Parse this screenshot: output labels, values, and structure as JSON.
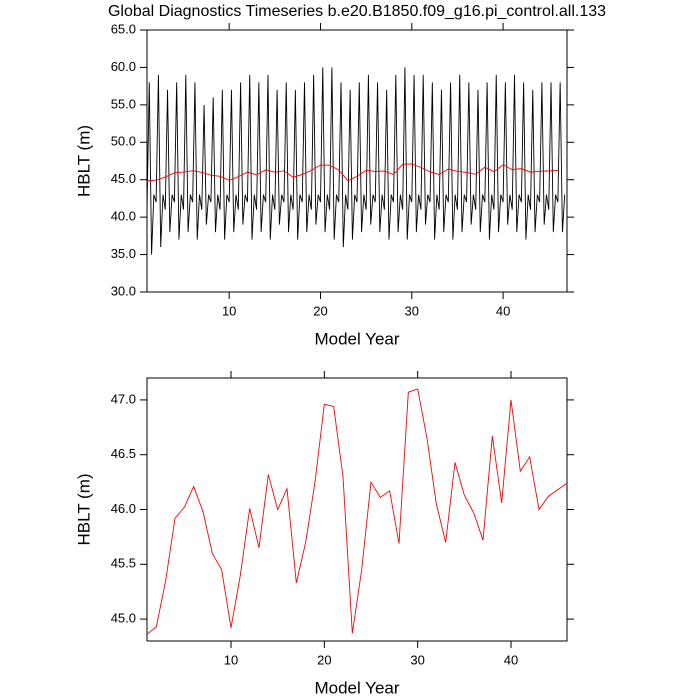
{
  "chart_data": [
    {
      "type": "line",
      "title": "Global Diagnostics Timeseries b.e20.B1850.f09_g16.pi_control.all.133",
      "xlabel": "Model Year",
      "ylabel": "HBLT (m)",
      "xlim": [
        1,
        47
      ],
      "ylim": [
        30,
        65
      ],
      "xticks": [
        10,
        20,
        30,
        40
      ],
      "yticks": [
        {
          "value": 30,
          "label": "30.0"
        },
        {
          "value": 35,
          "label": "35.0"
        },
        {
          "value": 40,
          "label": "40.0"
        },
        {
          "value": 45,
          "label": "45.0"
        },
        {
          "value": 50,
          "label": "50.0"
        },
        {
          "value": 55,
          "label": "55.0"
        },
        {
          "value": 60,
          "label": "60.0"
        },
        {
          "value": 65,
          "label": "65.0"
        }
      ],
      "series": [
        {
          "color": "#000000",
          "x": [
            1,
            1.25,
            1.5,
            1.75,
            2,
            2.25,
            2.5,
            2.75,
            3,
            3.25,
            3.5,
            3.75,
            4,
            4.25,
            4.5,
            4.75,
            5,
            5.25,
            5.5,
            5.75,
            6,
            6.25,
            6.5,
            6.75,
            7,
            7.25,
            7.5,
            7.75,
            8,
            8.25,
            8.5,
            8.75,
            9,
            9.25,
            9.5,
            9.75,
            10,
            10.25,
            10.5,
            10.75,
            11,
            11.25,
            11.5,
            11.75,
            12,
            12.25,
            12.5,
            12.75,
            13,
            13.25,
            13.5,
            13.75,
            14,
            14.25,
            14.5,
            14.75,
            15,
            15.25,
            15.5,
            15.75,
            16,
            16.25,
            16.5,
            16.75,
            17,
            17.25,
            17.5,
            17.75,
            18,
            18.25,
            18.5,
            18.75,
            19,
            19.25,
            19.5,
            19.75,
            20,
            20.25,
            20.5,
            20.75,
            21,
            21.25,
            21.5,
            21.75,
            22,
            22.25,
            22.5,
            22.75,
            23,
            23.25,
            23.5,
            23.75,
            24,
            24.25,
            24.5,
            24.75,
            25,
            25.25,
            25.5,
            25.75,
            26,
            26.25,
            26.5,
            26.75,
            27,
            27.25,
            27.5,
            27.75,
            28,
            28.25,
            28.5,
            28.75,
            29,
            29.25,
            29.5,
            29.75,
            30,
            30.25,
            30.5,
            30.75,
            31,
            31.25,
            31.5,
            31.75,
            32,
            32.25,
            32.5,
            32.75,
            33,
            33.25,
            33.5,
            33.75,
            34,
            34.25,
            34.5,
            34.75,
            35,
            35.25,
            35.5,
            35.75,
            36,
            36.25,
            36.5,
            36.75,
            37,
            37.25,
            37.5,
            37.75,
            38,
            38.25,
            38.5,
            38.75,
            39,
            39.25,
            39.5,
            39.75,
            40,
            40.25,
            40.5,
            40.75,
            41,
            41.25,
            41.5,
            41.75,
            42,
            42.25,
            42.5,
            42.75,
            43,
            43.25,
            43.5,
            43.75,
            44,
            44.25,
            44.5,
            44.75,
            45,
            45.25,
            45.5,
            45.75,
            46,
            46.25,
            46.5,
            46.75
          ],
          "values": [
            41,
            58,
            35,
            43,
            42,
            59,
            36,
            43,
            41,
            57,
            38,
            43,
            42,
            58,
            37,
            43,
            41,
            59,
            38,
            43,
            42,
            58,
            37,
            43,
            41,
            55,
            39,
            43,
            42,
            56,
            38,
            43,
            41,
            57,
            37,
            43,
            42,
            57,
            38,
            43,
            41,
            58,
            39,
            43,
            42,
            59,
            37,
            43,
            41,
            58,
            38,
            43,
            42,
            59,
            37,
            43,
            41,
            57,
            39,
            43,
            42,
            58,
            38,
            43,
            41,
            57,
            37,
            43,
            42,
            58,
            38,
            43,
            41,
            59,
            39,
            43,
            42,
            60,
            38,
            43,
            41,
            60,
            37,
            43,
            42,
            58,
            36,
            43,
            41,
            57,
            37,
            43,
            42,
            58,
            38,
            43,
            41,
            59,
            39,
            43,
            42,
            58,
            38,
            43,
            41,
            57,
            37,
            43,
            42,
            59,
            38,
            43,
            41,
            60,
            37,
            43,
            42,
            59,
            38,
            43,
            41,
            59,
            39,
            43,
            42,
            58,
            37,
            43,
            41,
            57,
            38,
            43,
            42,
            58,
            37,
            43,
            41,
            59,
            38,
            43,
            42,
            58,
            39,
            43,
            41,
            57,
            38,
            43,
            42,
            58,
            37,
            43,
            41,
            59,
            38,
            43,
            42,
            58,
            39,
            43,
            41,
            59,
            38,
            43,
            42,
            58,
            37,
            43,
            41,
            57,
            38,
            43,
            42,
            58,
            39,
            43,
            41,
            58,
            38,
            43,
            42,
            58,
            38,
            43
          ]
        },
        {
          "color": "#ff0000",
          "x": [
            1,
            2,
            3,
            4,
            5,
            6,
            7,
            8,
            9,
            10,
            11,
            12,
            13,
            14,
            15,
            16,
            17,
            18,
            19,
            20,
            21,
            22,
            23,
            24,
            25,
            26,
            27,
            28,
            29,
            30,
            31,
            32,
            33,
            34,
            35,
            36,
            37,
            38,
            39,
            40,
            41,
            42,
            43,
            44,
            45,
            46
          ],
          "values": [
            44.86,
            44.93,
            45.35,
            45.92,
            46.02,
            46.21,
            45.98,
            45.6,
            45.45,
            44.92,
            45.4,
            46.01,
            45.65,
            46.32,
            46.0,
            46.19,
            45.33,
            45.7,
            46.25,
            46.96,
            46.94,
            46.3,
            44.87,
            45.45,
            46.25,
            46.11,
            46.17,
            45.69,
            47.07,
            47.1,
            46.65,
            46.05,
            45.7,
            46.43,
            46.13,
            45.97,
            45.72,
            46.67,
            46.06,
            47.0,
            46.35,
            46.48,
            46.0,
            46.12,
            46.18,
            46.24
          ]
        }
      ]
    },
    {
      "type": "line",
      "xlabel": "Model Year",
      "ylabel": "HBLT (m)",
      "xlim": [
        1,
        46
      ],
      "ylim": [
        44.8,
        47.2
      ],
      "xticks": [
        10,
        20,
        30,
        40
      ],
      "yticks": [
        {
          "value": 45,
          "label": "45.0"
        },
        {
          "value": 45.5,
          "label": "45.5"
        },
        {
          "value": 46,
          "label": "46.0"
        },
        {
          "value": 46.5,
          "label": "46.5"
        },
        {
          "value": 47,
          "label": "47.0"
        }
      ],
      "series": [
        {
          "color": "#ff0000",
          "x": [
            1,
            2,
            3,
            4,
            5,
            6,
            7,
            8,
            9,
            10,
            11,
            12,
            13,
            14,
            15,
            16,
            17,
            18,
            19,
            20,
            21,
            22,
            23,
            24,
            25,
            26,
            27,
            28,
            29,
            30,
            31,
            32,
            33,
            34,
            35,
            36,
            37,
            38,
            39,
            40,
            41,
            42,
            43,
            44,
            45,
            46
          ],
          "values": [
            44.86,
            44.93,
            45.35,
            45.92,
            46.02,
            46.21,
            45.98,
            45.6,
            45.45,
            44.92,
            45.4,
            46.01,
            45.65,
            46.32,
            46.0,
            46.19,
            45.33,
            45.7,
            46.25,
            46.96,
            46.94,
            46.3,
            44.87,
            45.45,
            46.25,
            46.11,
            46.17,
            45.69,
            47.07,
            47.1,
            46.65,
            46.05,
            45.7,
            46.43,
            46.13,
            45.97,
            45.72,
            46.67,
            46.06,
            47.0,
            46.35,
            46.48,
            46.0,
            46.12,
            46.18,
            46.24
          ]
        }
      ]
    }
  ]
}
